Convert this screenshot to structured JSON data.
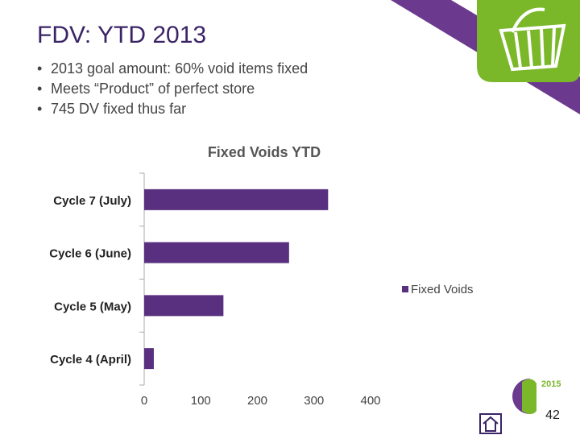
{
  "slide": {
    "title": "FDV: YTD 2013",
    "bullets": [
      "2013 goal amount: 60% void items fixed",
      "Meets “Product” of perfect store",
      "745 DV fixed thus far"
    ],
    "logo_year": "2015",
    "page_number": "42"
  },
  "chart_data": {
    "type": "bar",
    "orientation": "horizontal",
    "title": "Fixed Voids YTD",
    "categories": [
      "Cycle 7 (July)",
      "Cycle 6 (June)",
      "Cycle 5 (May)",
      "Cycle 4 (April)"
    ],
    "series": [
      {
        "name": "Fixed Voids",
        "color": "#59307f",
        "values": [
          325,
          256,
          140,
          17
        ]
      }
    ],
    "xlim": [
      0,
      400
    ],
    "xticks": [
      0,
      100,
      200,
      300,
      400
    ],
    "grid": false,
    "legend": "right"
  }
}
